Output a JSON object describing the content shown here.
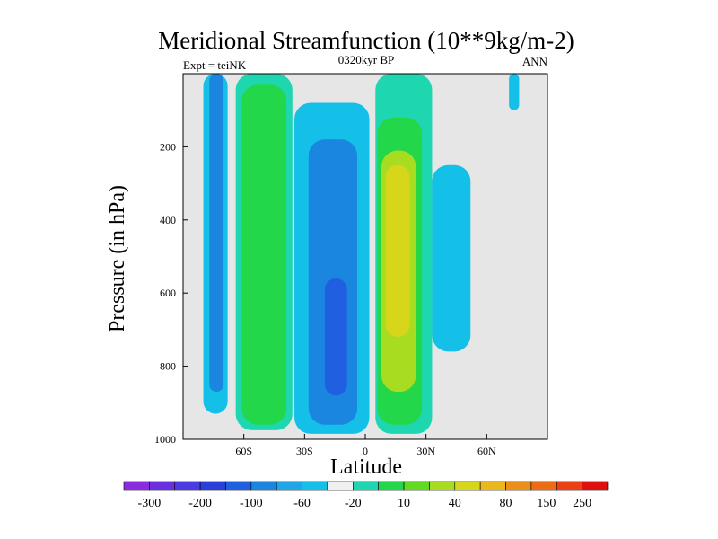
{
  "chart_data": {
    "type": "contour",
    "title": "Meridional Streamfunction (10**9kg/m-2)",
    "subtitle_left": "Expt = teiNK",
    "subtitle_center": "0320kyr BP",
    "subtitle_right": "ANN",
    "xlabel": "Latitude",
    "ylabel": "Pressure (in hPa)",
    "xlim": [
      -90,
      90
    ],
    "ylim": [
      0,
      1000
    ],
    "y_inverted": true,
    "x_ticks": [
      {
        "value": -60,
        "label": "60S"
      },
      {
        "value": -30,
        "label": "30S"
      },
      {
        "value": 0,
        "label": "0"
      },
      {
        "value": 30,
        "label": "30N"
      },
      {
        "value": 60,
        "label": "60N"
      }
    ],
    "y_ticks": [
      {
        "value": 200,
        "label": "200"
      },
      {
        "value": 400,
        "label": "400"
      },
      {
        "value": 600,
        "label": "600"
      },
      {
        "value": 800,
        "label": "800"
      },
      {
        "value": 1000,
        "label": "1000"
      }
    ],
    "colorbar": {
      "colors": [
        "#8a2be2",
        "#6a2fe0",
        "#4b3be0",
        "#2a3fd8",
        "#1f5fe0",
        "#1a86e0",
        "#1ea6e6",
        "#15c0e8",
        "#f0f0f0",
        "#1ed6b0",
        "#22d84a",
        "#62da20",
        "#a8dc20",
        "#d8d61a",
        "#e9b81a",
        "#ec8e18",
        "#ee6a14",
        "#ea4012",
        "#e01010"
      ],
      "tick_labels": [
        {
          "boundary": 1,
          "label": "-300"
        },
        {
          "boundary": 3,
          "label": "-200"
        },
        {
          "boundary": 5,
          "label": "-100"
        },
        {
          "boundary": 7,
          "label": "-60"
        },
        {
          "boundary": 9,
          "label": "-20"
        },
        {
          "boundary": 11,
          "label": "10"
        },
        {
          "boundary": 13,
          "label": "40"
        },
        {
          "boundary": 15,
          "label": "80"
        },
        {
          "boundary": 16.6,
          "label": "150"
        },
        {
          "boundary": 18,
          "label": "250"
        }
      ]
    },
    "cells": [
      {
        "name": "sh-polar-cell-cyan",
        "level": "-20",
        "color": "#15c0e8",
        "x": [
          -80,
          -68
        ],
        "p": [
          0,
          930
        ]
      },
      {
        "name": "sh-polar-cell-blue",
        "level": "-60",
        "color": "#1a86e0",
        "x": [
          -77,
          -70
        ],
        "p": [
          0,
          870
        ]
      },
      {
        "name": "sh-ferrel-cell-cyan-teal",
        "level": "10",
        "color": "#1ed6b0",
        "x": [
          -64,
          -36
        ],
        "p": [
          0,
          975
        ]
      },
      {
        "name": "sh-ferrel-cell-green",
        "level": "40",
        "color": "#22d84a",
        "x": [
          -61,
          -39
        ],
        "p": [
          30,
          960
        ]
      },
      {
        "name": "hadley-cell-south-cyan",
        "level": "-20",
        "color": "#15c0e8",
        "x": [
          -35,
          2
        ],
        "p": [
          80,
          985
        ]
      },
      {
        "name": "hadley-cell-south-blue",
        "level": "-60",
        "color": "#1a86e0",
        "x": [
          -28,
          -4
        ],
        "p": [
          180,
          960
        ]
      },
      {
        "name": "hadley-cell-south-core",
        "level": "-100",
        "color": "#1f5fe0",
        "x": [
          -20,
          -9
        ],
        "p": [
          560,
          880
        ]
      },
      {
        "name": "hadley-cell-north-teal",
        "level": "10",
        "color": "#1ed6b0",
        "x": [
          5,
          33
        ],
        "p": [
          0,
          985
        ]
      },
      {
        "name": "hadley-cell-north-green",
        "level": "40",
        "color": "#22d84a",
        "x": [
          6,
          28
        ],
        "p": [
          120,
          960
        ]
      },
      {
        "name": "hadley-cell-north-yellowgreen",
        "level": "80",
        "color": "#a8dc20",
        "x": [
          8,
          25
        ],
        "p": [
          210,
          870
        ]
      },
      {
        "name": "hadley-cell-north-yellow",
        "level": "150",
        "color": "#d8d61a",
        "x": [
          10,
          22
        ],
        "p": [
          250,
          720
        ]
      },
      {
        "name": "nh-ferrel-cell-cyan",
        "level": "-20",
        "color": "#15c0e8",
        "x": [
          33,
          52
        ],
        "p": [
          250,
          760
        ]
      },
      {
        "name": "nh-polar-cell-cyan",
        "level": "-20",
        "color": "#15c0e8",
        "x": [
          71,
          76
        ],
        "p": [
          0,
          100
        ]
      }
    ]
  }
}
